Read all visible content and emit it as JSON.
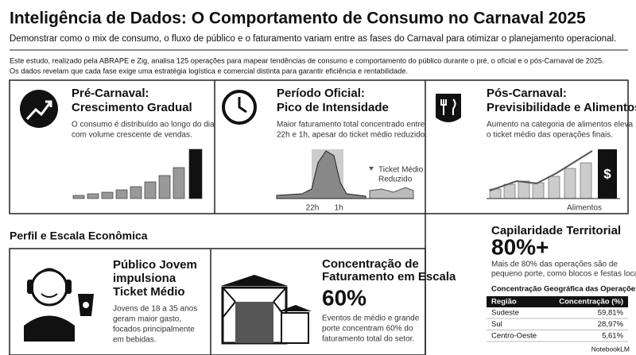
{
  "header": {
    "title": "Inteligência de Dados: O Comportamento de Consumo no Carnaval 2025",
    "subtitle": "Demonstrar como o mix de consumo, o fluxo de público e o faturamento variam entre as fases do Carnaval para otimizar o planejamento operacional."
  },
  "intro": {
    "lines": [
      "Este estudo, realizado pela ABRAPE e Zig, analisa 125 operações para mapear tendências de consumo e comportamento do público durante o pré, o oficial e o pós-Carnaval de 2025.",
      "Os dados revelam que cada fase exige uma estratégia logística e comercial distinta para garantir eficiência e rentabilidade."
    ]
  },
  "phases": [
    {
      "title": [
        "Pré-Carnaval:",
        "Crescimento Gradual"
      ],
      "description": [
        "O consumo é distribuído ao longo do dia",
        "com volume crescente de vendas."
      ]
    },
    {
      "title": [
        "Período Oficial:",
        "Pico de Intensidade"
      ],
      "description": [
        "Maior faturamento total concentrado entre",
        "22h e 1h, apesar do ticket médio reduzido."
      ],
      "labels": [
        "22h",
        "1h"
      ],
      "annotation": [
        "Ticket Médio",
        "Reduzido"
      ]
    },
    {
      "title": [
        "Pós-Carnaval:",
        "Previsibilidade e Alimentos"
      ],
      "description": [
        "Aumento na categoria de alimentos eleva",
        "o ticket médio das operações finais."
      ],
      "labels": [
        "$",
        "Alimentos"
      ]
    }
  ],
  "profile": {
    "title": "Perfil e Escala Econômica",
    "youth": {
      "title": [
        "Público Jovem",
        "impulsiona",
        "Ticket Médio"
      ],
      "text": [
        "Jovens de 18 a 35 anos",
        "geram maior gasto,",
        "focados principalmente",
        "em bebidas."
      ]
    },
    "concentration": {
      "title": [
        "Concentração de",
        "Faturamento em Escala"
      ],
      "figure": "60%",
      "text": [
        "Eventos de médio e grande",
        "porte concentram 60% do",
        "faturamento total do setor."
      ]
    }
  },
  "territory": {
    "title": "Capilaridade Territorial",
    "figure": "80%+",
    "text": [
      "Mais de 80% das operações são de",
      "pequeno porte, como blocos e festas locais."
    ],
    "table": {
      "title": "Concentração Geográfica das Operações",
      "header": [
        "Região",
        "Concentração (%)"
      ],
      "rows": [
        [
          "Sudeste",
          "59,81%"
        ],
        [
          "Sul",
          "28,97%"
        ],
        [
          "Centro-Oeste",
          "5,61%"
        ]
      ]
    }
  },
  "footer": {
    "brand": "NotebookLM"
  }
}
